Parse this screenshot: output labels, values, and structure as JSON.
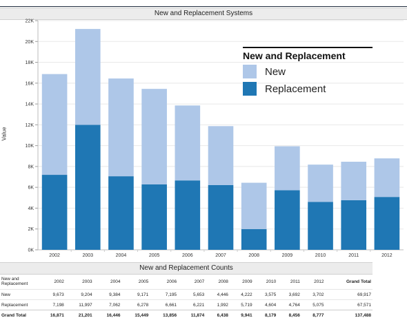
{
  "chart_data": {
    "type": "bar",
    "stacked": true,
    "title": "New and Replacement Systems",
    "ylabel": "Value",
    "ylim": [
      0,
      22000
    ],
    "yticks": [
      "0K",
      "2K",
      "4K",
      "6K",
      "8K",
      "10K",
      "12K",
      "14K",
      "16K",
      "18K",
      "20K",
      "22K"
    ],
    "categories": [
      "2002",
      "2003",
      "2004",
      "2005",
      "2006",
      "2007",
      "2008",
      "2009",
      "2010",
      "2011",
      "2012"
    ],
    "series": [
      {
        "name": "Replacement",
        "color": "#1f77b4",
        "values": [
          7198,
          11997,
          7062,
          6278,
          6661,
          6221,
          1992,
          5719,
          4604,
          4764,
          5075
        ]
      },
      {
        "name": "New",
        "color": "#aec7e8",
        "values": [
          9673,
          9204,
          9384,
          9171,
          7195,
          5653,
          4446,
          4222,
          3575,
          3692,
          3702
        ]
      }
    ],
    "legend": {
      "title": "New and Replacement",
      "items": [
        "New",
        "Replacement"
      ],
      "position": "top-right"
    },
    "grid": true
  },
  "table": {
    "title": "New and Replacement Counts",
    "row_header": "New and Replacement",
    "grand_total_header": "Grand Total",
    "columns": [
      "2002",
      "2003",
      "2004",
      "2005",
      "2006",
      "2007",
      "2008",
      "2009",
      "2010",
      "2011",
      "2012"
    ],
    "rows": [
      {
        "label": "New",
        "values": [
          "9,673",
          "9,204",
          "9,384",
          "9,171",
          "7,195",
          "5,653",
          "4,446",
          "4,222",
          "3,575",
          "3,692",
          "3,702"
        ],
        "total": "69,917"
      },
      {
        "label": "Replacement",
        "values": [
          "7,198",
          "11,997",
          "7,062",
          "6,278",
          "6,661",
          "6,221",
          "1,992",
          "5,719",
          "4,604",
          "4,764",
          "5,075"
        ],
        "total": "67,571"
      },
      {
        "label": "Grand Total",
        "values": [
          "16,871",
          "21,201",
          "16,446",
          "15,449",
          "13,856",
          "11,874",
          "6,438",
          "9,941",
          "8,179",
          "8,456",
          "8,777"
        ],
        "total": "137,488"
      }
    ]
  }
}
